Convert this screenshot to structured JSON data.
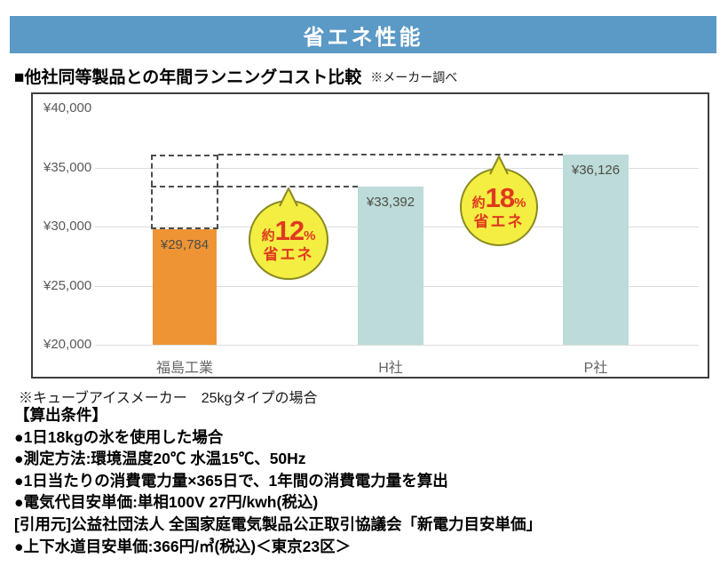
{
  "page": {
    "header_title": "省エネ性能",
    "section_title": "■他社同等製品との年間ランニングコスト比較",
    "section_note": "※メーカー調べ",
    "footnote": "※キューブアイスメーカー　25kgタイプの場合",
    "conditions_heading": "【算出条件】",
    "condition_lines": [
      "●1日18kgの氷を使用した場合",
      "●測定方法:環境温度20℃ 水温15℃、50Hz",
      "●1日当たりの消費電力量×365日で、1年間の消費電力量を算出",
      "●電気代目安単価:単相100V 27円/kwh(税込)",
      "[引用元]公益社団法人 全国家庭電気製品公正取引協議会「新電力目安単価」",
      "●上下水道目安単価:366円/㎥(税込)＜東京23区＞"
    ]
  },
  "colors": {
    "header_bg": "#5b99c6",
    "bar_highlight": "#ef9435",
    "bar_other": "#bcdbd9",
    "bubble_fill": "#f3ee41",
    "bubble_border": "#8a8a22",
    "bubble_text": "#e0391f",
    "gridline": "#dcdcdc",
    "dashed": "#4d4d4d"
  },
  "chart_data": {
    "type": "bar",
    "title": "他社同等製品との年間ランニングコスト比較",
    "categories": [
      "福島工業",
      "H社",
      "P社"
    ],
    "values": [
      29784,
      33392,
      36126
    ],
    "value_labels": [
      "¥29,784",
      "¥33,392",
      "¥36,126"
    ],
    "ylim": [
      20000,
      40000
    ],
    "yticks": [
      40000,
      35000,
      30000,
      25000,
      20000
    ],
    "ytick_labels": [
      "¥40,000",
      "¥35,000",
      "¥30,000",
      "¥25,000",
      "¥20,000"
    ],
    "gridline_ticks": [
      35000,
      30000,
      25000,
      20000
    ],
    "bar_color_keys": [
      "highlight",
      "other",
      "other"
    ],
    "legend": "none",
    "annotations": [
      {
        "prefix": "約",
        "percent": "12",
        "unit": "%",
        "line2": "省エネ",
        "points_to_value": 33392,
        "refers_to": "H社"
      },
      {
        "prefix": "約",
        "percent": "18",
        "unit": "%",
        "line2": "省エネ",
        "points_to_value": 36126,
        "refers_to": "P社"
      }
    ],
    "comparison_box": {
      "over_category": "福島工業",
      "from_value": 29784,
      "to_value": 36126,
      "mid_value": 33392
    }
  }
}
